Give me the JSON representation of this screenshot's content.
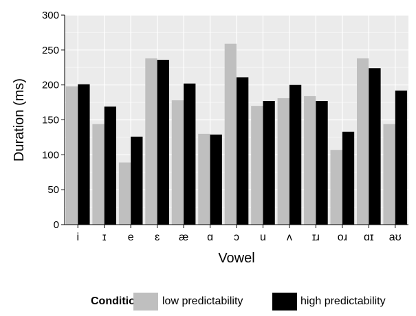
{
  "chart_data": {
    "type": "bar",
    "xlabel": "Vowel",
    "ylabel": "Duration (ms)",
    "ylim": [
      0,
      300
    ],
    "yticks": [
      0,
      50,
      100,
      150,
      200,
      250,
      300
    ],
    "grid": true,
    "legend_position": "bottom",
    "legend_title": "Condition",
    "categories": [
      "i",
      "ɪ",
      "e",
      "ɛ",
      "æ",
      "ɑ",
      "ɔ",
      "u",
      "ʌ",
      "ɪɹ",
      "oɹ",
      "ɑɪ",
      "aʊ"
    ],
    "series": [
      {
        "name": "low predictability",
        "color": "#bfbfbf",
        "values": [
          198,
          144,
          89,
          238,
          178,
          130,
          259,
          170,
          181,
          184,
          107,
          238,
          144
        ]
      },
      {
        "name": "high predictability",
        "color": "#000000",
        "values": [
          201,
          169,
          126,
          236,
          202,
          129,
          211,
          177,
          200,
          177,
          133,
          224,
          192
        ]
      }
    ]
  },
  "colors": {
    "panel_background": "#ebebeb",
    "grid_major": "#ffffff",
    "grid_minor": "#f5f5f5",
    "text": "#000000"
  }
}
